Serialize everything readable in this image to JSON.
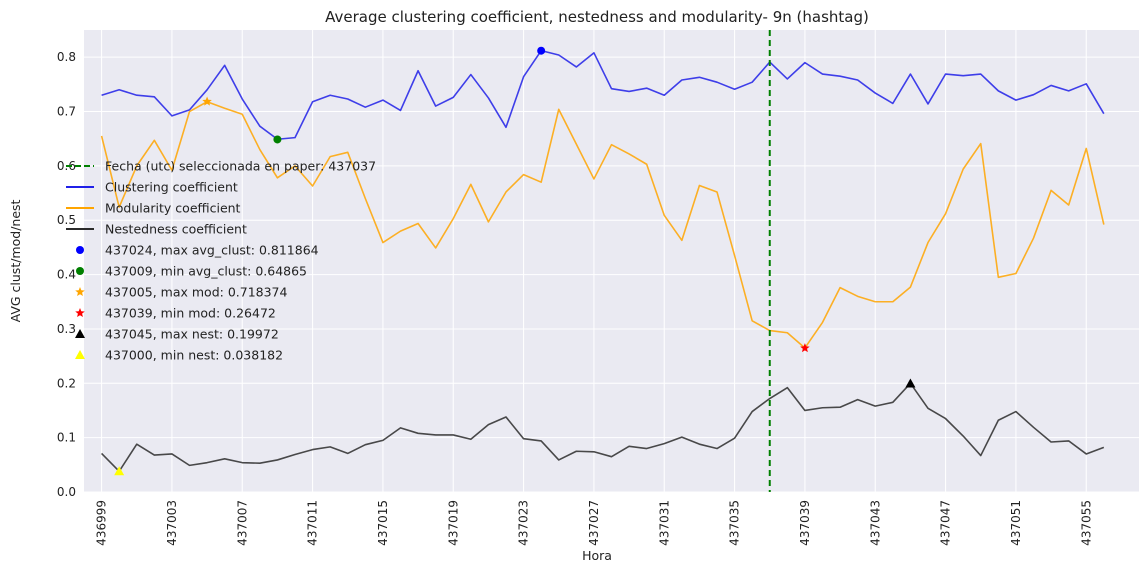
{
  "chart_data": {
    "type": "line",
    "title": "Average clustering coefficient, nestedness and modularity- 9n (hashtag)",
    "xlabel": "Hora",
    "ylabel": "AVG clust/mod/nest",
    "xlim": [
      436998,
      437058
    ],
    "ylim": [
      0.0,
      0.85
    ],
    "x_ticks": [
      436999,
      437003,
      437007,
      437011,
      437015,
      437019,
      437023,
      437027,
      437031,
      437035,
      437039,
      437043,
      437047,
      437051,
      437055
    ],
    "y_ticks": [
      0.0,
      0.1,
      0.2,
      0.3,
      0.4,
      0.5,
      0.6,
      0.7,
      0.8
    ],
    "grid": true,
    "legend_position": "center-left",
    "x": [
      436999,
      437000,
      437001,
      437002,
      437003,
      437004,
      437005,
      437006,
      437007,
      437008,
      437009,
      437010,
      437011,
      437012,
      437013,
      437014,
      437015,
      437016,
      437017,
      437018,
      437019,
      437020,
      437021,
      437022,
      437023,
      437024,
      437025,
      437026,
      437027,
      437028,
      437029,
      437030,
      437031,
      437032,
      437033,
      437034,
      437035,
      437036,
      437037,
      437038,
      437039,
      437040,
      437041,
      437042,
      437043,
      437044,
      437045,
      437046,
      437047,
      437048,
      437049,
      437050,
      437051,
      437052,
      437053,
      437054,
      437055,
      437056
    ],
    "series": [
      {
        "name": "Clustering coefficient",
        "color": "#2020e8",
        "values": [
          0.73,
          0.74,
          0.73,
          0.727,
          0.692,
          0.703,
          0.74,
          0.785,
          0.723,
          0.673,
          0.649,
          0.652,
          0.718,
          0.73,
          0.723,
          0.708,
          0.721,
          0.702,
          0.775,
          0.71,
          0.726,
          0.768,
          0.725,
          0.671,
          0.764,
          0.812,
          0.804,
          0.782,
          0.808,
          0.742,
          0.737,
          0.743,
          0.73,
          0.758,
          0.763,
          0.754,
          0.741,
          0.754,
          0.791,
          0.76,
          0.79,
          0.769,
          0.765,
          0.758,
          0.734,
          0.715,
          0.769,
          0.714,
          0.769,
          0.766,
          0.769,
          0.738,
          0.721,
          0.731,
          0.748,
          0.738,
          0.751,
          0.696
        ]
      },
      {
        "name": "Modularity coefficient",
        "color": "#ffa500",
        "values": [
          0.655,
          0.524,
          0.6,
          0.647,
          0.592,
          0.7,
          0.718,
          0.706,
          0.695,
          0.63,
          0.578,
          0.6,
          0.563,
          0.617,
          0.625,
          0.54,
          0.459,
          0.48,
          0.494,
          0.449,
          0.503,
          0.566,
          0.497,
          0.552,
          0.584,
          0.57,
          0.704,
          0.64,
          0.576,
          0.639,
          0.622,
          0.603,
          0.509,
          0.463,
          0.564,
          0.552,
          0.435,
          0.315,
          0.297,
          0.293,
          0.265,
          0.312,
          0.376,
          0.36,
          0.35,
          0.35,
          0.377,
          0.459,
          0.512,
          0.594,
          0.641,
          0.395,
          0.402,
          0.467,
          0.555,
          0.528,
          0.632,
          0.492
        ]
      },
      {
        "name": "Nestedness coefficient",
        "color": "#2b2b2b",
        "values": [
          0.071,
          0.038,
          0.088,
          0.068,
          0.07,
          0.049,
          0.054,
          0.061,
          0.054,
          0.053,
          0.059,
          0.069,
          0.078,
          0.083,
          0.071,
          0.087,
          0.095,
          0.118,
          0.108,
          0.105,
          0.105,
          0.097,
          0.124,
          0.138,
          0.098,
          0.094,
          0.059,
          0.075,
          0.074,
          0.065,
          0.084,
          0.08,
          0.089,
          0.101,
          0.088,
          0.08,
          0.099,
          0.148,
          0.172,
          0.192,
          0.15,
          0.155,
          0.156,
          0.17,
          0.158,
          0.165,
          0.2,
          0.154,
          0.135,
          0.103,
          0.067,
          0.132,
          0.148,
          0.119,
          0.092,
          0.094,
          0.07,
          0.082
        ]
      }
    ],
    "vline": {
      "label": "Fecha (utc) seleccionada en paper: 437037",
      "x": 437037,
      "color": "#008000"
    },
    "markers": [
      {
        "label": "437024, max avg_clust: 0.811864",
        "x": 437024,
        "y": 0.811864,
        "shape": "circle",
        "color": "#0000ff"
      },
      {
        "label": "437009, min avg_clust: 0.64865",
        "x": 437009,
        "y": 0.64865,
        "shape": "circle",
        "color": "#008000"
      },
      {
        "label": "437005, max mod: 0.718374",
        "x": 437005,
        "y": 0.718374,
        "shape": "star",
        "color": "#ffa500"
      },
      {
        "label": "437039, min mod: 0.26472",
        "x": 437039,
        "y": 0.26472,
        "shape": "star",
        "color": "#ff0000"
      },
      {
        "label": "437045, max nest: 0.19972",
        "x": 437045,
        "y": 0.19972,
        "shape": "triangle",
        "color": "#000000"
      },
      {
        "label": "437000, min nest: 0.038182",
        "x": 437000,
        "y": 0.038182,
        "shape": "triangle",
        "color": "#ffff00"
      }
    ]
  }
}
